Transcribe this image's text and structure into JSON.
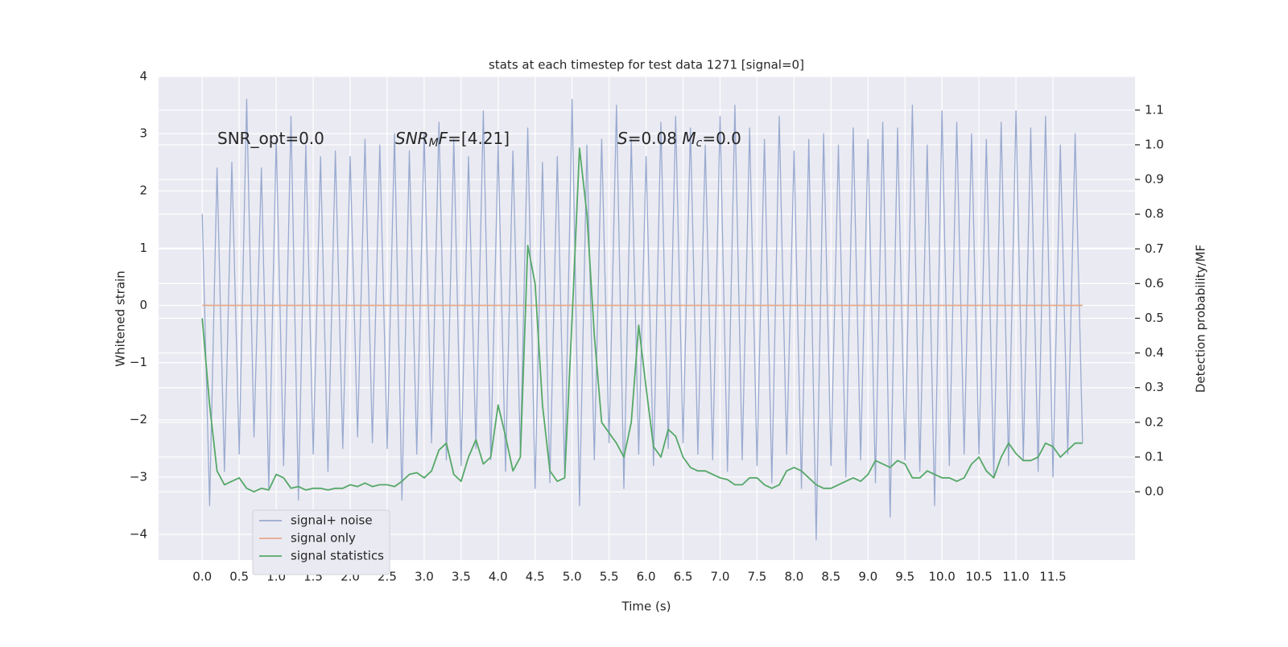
{
  "chart_data": {
    "type": "line",
    "title": "stats at each timestep for test data 1271 [signal=0]",
    "xlabel": "Time (s)",
    "ylabel": "Whitened strain",
    "y2label": "Detection probability/MF",
    "annotations": [
      [
        "SNR_opt=0.0"
      ],
      [
        "SNR",
        "M",
        "F=[4.21]"
      ],
      [
        "S",
        "=0.08   ",
        "M",
        "c",
        "=0.0"
      ]
    ],
    "x": [
      0,
      0.1,
      0.2,
      0.3,
      0.4,
      0.5,
      0.6,
      0.7,
      0.8,
      0.9,
      1,
      1.1,
      1.2,
      1.3,
      1.4,
      1.5,
      1.6,
      1.7,
      1.8,
      1.9,
      2,
      2.1,
      2.2,
      2.3,
      2.4,
      2.5,
      2.6,
      2.7,
      2.8,
      2.9,
      3,
      3.1,
      3.2,
      3.3,
      3.4,
      3.5,
      3.6,
      3.7,
      3.8,
      3.9,
      4,
      4.1,
      4.2,
      4.3,
      4.4,
      4.5,
      4.6,
      4.7,
      4.8,
      4.9,
      5,
      5.1,
      5.2,
      5.3,
      5.4,
      5.5,
      5.6,
      5.7,
      5.8,
      5.9,
      6,
      6.1,
      6.2,
      6.3,
      6.4,
      6.5,
      6.6,
      6.7,
      6.8,
      6.9,
      7,
      7.1,
      7.2,
      7.3,
      7.4,
      7.5,
      7.6,
      7.7,
      7.8,
      7.9,
      8,
      8.1,
      8.2,
      8.3,
      8.4,
      8.5,
      8.6,
      8.7,
      8.8,
      8.9,
      9,
      9.1,
      9.2,
      9.3,
      9.4,
      9.5,
      9.6,
      9.7,
      9.8,
      9.9,
      10,
      10.1,
      10.2,
      10.3,
      10.4,
      10.5,
      10.6,
      10.7,
      10.8,
      10.9,
      11,
      11.1,
      11.2,
      11.3,
      11.4,
      11.5,
      11.6,
      11.7,
      11.8,
      11.9
    ],
    "series": [
      {
        "name": "signal+ noise",
        "color": "#99aad0",
        "values": [
          1.6,
          -3.5,
          2.4,
          -2.9,
          2.5,
          -2.6,
          3.6,
          -2.3,
          2.4,
          -3.2,
          2.9,
          -2.8,
          3.3,
          -3.4,
          2.8,
          -2.6,
          2.6,
          -2.9,
          2.7,
          -2.5,
          2.6,
          -2.3,
          2.9,
          -2.4,
          2.8,
          -2.5,
          3.0,
          -3.4,
          2.7,
          -2.6,
          3.0,
          -2.4,
          3.2,
          -2.7,
          2.9,
          -2.8,
          2.6,
          -2.5,
          3.4,
          -2.7,
          2.8,
          -2.9,
          2.7,
          -2.6,
          3.1,
          -3.2,
          2.5,
          -3.1,
          2.6,
          -3.0,
          3.6,
          -3.5,
          2.8,
          -2.7,
          2.9,
          -2.4,
          3.5,
          -3.2,
          2.9,
          -2.6,
          2.6,
          -2.8,
          3.2,
          -2.5,
          3.3,
          -2.4,
          3.1,
          -2.6,
          2.8,
          -2.7,
          3.3,
          -2.9,
          3.5,
          -2.7,
          3.1,
          -2.8,
          2.9,
          -3.1,
          3.3,
          -2.6,
          2.7,
          -3.2,
          2.9,
          -4.1,
          3.0,
          -2.8,
          2.8,
          -3.0,
          3.1,
          -2.7,
          2.9,
          -3.1,
          3.2,
          -3.7,
          3.1,
          -2.7,
          3.5,
          -2.9,
          2.8,
          -3.5,
          3.4,
          -2.8,
          3.2,
          -2.6,
          3.0,
          -2.6,
          2.9,
          -3.0,
          3.2,
          -2.8,
          3.4,
          -2.7,
          3.1,
          -2.9,
          3.3,
          -3.0,
          2.8,
          -2.6,
          3.0,
          -2.4
        ]
      },
      {
        "name": "signal only",
        "color": "#e5a98a",
        "values": [
          0,
          0,
          0,
          0,
          0,
          0,
          0,
          0,
          0,
          0,
          0,
          0,
          0,
          0,
          0,
          0,
          0,
          0,
          0,
          0,
          0,
          0,
          0,
          0,
          0,
          0,
          0,
          0,
          0,
          0,
          0,
          0,
          0,
          0,
          0,
          0,
          0,
          0,
          0,
          0,
          0,
          0,
          0,
          0,
          0,
          0,
          0,
          0,
          0,
          0,
          0,
          0,
          0,
          0,
          0,
          0,
          0,
          0,
          0,
          0,
          0,
          0,
          0,
          0,
          0,
          0,
          0,
          0,
          0,
          0,
          0,
          0,
          0,
          0,
          0,
          0,
          0,
          0,
          0,
          0,
          0,
          0,
          0,
          0,
          0,
          0,
          0,
          0,
          0,
          0,
          0,
          0,
          0,
          0,
          0,
          0,
          0,
          0,
          0,
          0,
          0,
          0,
          0,
          0,
          0,
          0,
          0,
          0,
          0,
          0,
          0,
          0,
          0,
          0,
          0,
          0,
          0,
          0,
          0,
          0
        ]
      },
      {
        "name": "signal statistics",
        "color": "#55a868",
        "axis": "y2",
        "values": [
          0.5,
          0.25,
          0.06,
          0.02,
          0.03,
          0.04,
          0.01,
          0.0,
          0.01,
          0.005,
          0.05,
          0.04,
          0.01,
          0.015,
          0.005,
          0.01,
          0.01,
          0.005,
          0.01,
          0.01,
          0.02,
          0.015,
          0.025,
          0.015,
          0.02,
          0.02,
          0.015,
          0.03,
          0.05,
          0.055,
          0.04,
          0.06,
          0.12,
          0.14,
          0.05,
          0.03,
          0.1,
          0.15,
          0.08,
          0.1,
          0.25,
          0.16,
          0.06,
          0.1,
          0.71,
          0.6,
          0.25,
          0.06,
          0.03,
          0.04,
          0.5,
          0.99,
          0.8,
          0.45,
          0.2,
          0.17,
          0.14,
          0.1,
          0.2,
          0.48,
          0.3,
          0.13,
          0.1,
          0.18,
          0.16,
          0.1,
          0.07,
          0.06,
          0.06,
          0.05,
          0.04,
          0.035,
          0.02,
          0.02,
          0.04,
          0.04,
          0.02,
          0.01,
          0.02,
          0.06,
          0.07,
          0.06,
          0.04,
          0.02,
          0.01,
          0.01,
          0.02,
          0.03,
          0.04,
          0.03,
          0.05,
          0.09,
          0.08,
          0.07,
          0.09,
          0.08,
          0.04,
          0.04,
          0.06,
          0.05,
          0.04,
          0.04,
          0.03,
          0.04,
          0.08,
          0.1,
          0.06,
          0.04,
          0.1,
          0.14,
          0.11,
          0.09,
          0.09,
          0.1,
          0.14,
          0.13,
          0.1,
          0.12,
          0.14,
          0.14
        ]
      }
    ],
    "xlim": [
      -0.59,
      12.61
    ],
    "ylim": [
      -4.45,
      4
    ],
    "y2lim": [
      -0.197,
      1.197
    ],
    "xticks": [
      {
        "value": 0,
        "label": "0.0"
      },
      0.5,
      {
        "value": 1,
        "label": "1.0"
      },
      1.5,
      {
        "value": 2,
        "label": "2.0"
      },
      2.5,
      {
        "value": 3,
        "label": "3.0"
      },
      3.5,
      {
        "value": 4,
        "label": "4.0"
      },
      4.5,
      {
        "value": 5,
        "label": "5.0"
      },
      5.5,
      {
        "value": 6,
        "label": "6.0"
      },
      6.5,
      {
        "value": 7,
        "label": "7.0"
      },
      7.5,
      {
        "value": 8,
        "label": "8.0"
      },
      8.5,
      {
        "value": 9,
        "label": "9.0"
      },
      9.5,
      {
        "value": 10,
        "label": "10.0"
      },
      10.5,
      {
        "value": 11,
        "label": "11.0"
      },
      11.5
    ],
    "yticks": [
      {
        "value": -4,
        "label": "−4"
      },
      {
        "value": -3,
        "label": "−3"
      },
      {
        "value": -2,
        "label": "−2"
      },
      {
        "value": -1,
        "label": "−1"
      },
      0,
      1,
      2,
      3,
      4
    ],
    "y2ticks": [
      {
        "value": 0,
        "label": "0.0"
      },
      0.1,
      0.2,
      0.3,
      0.4,
      0.5,
      0.6,
      0.7,
      0.8,
      0.9,
      {
        "value": 1,
        "label": "1.0"
      },
      1.1
    ],
    "grid": true,
    "legend": "lower left"
  }
}
